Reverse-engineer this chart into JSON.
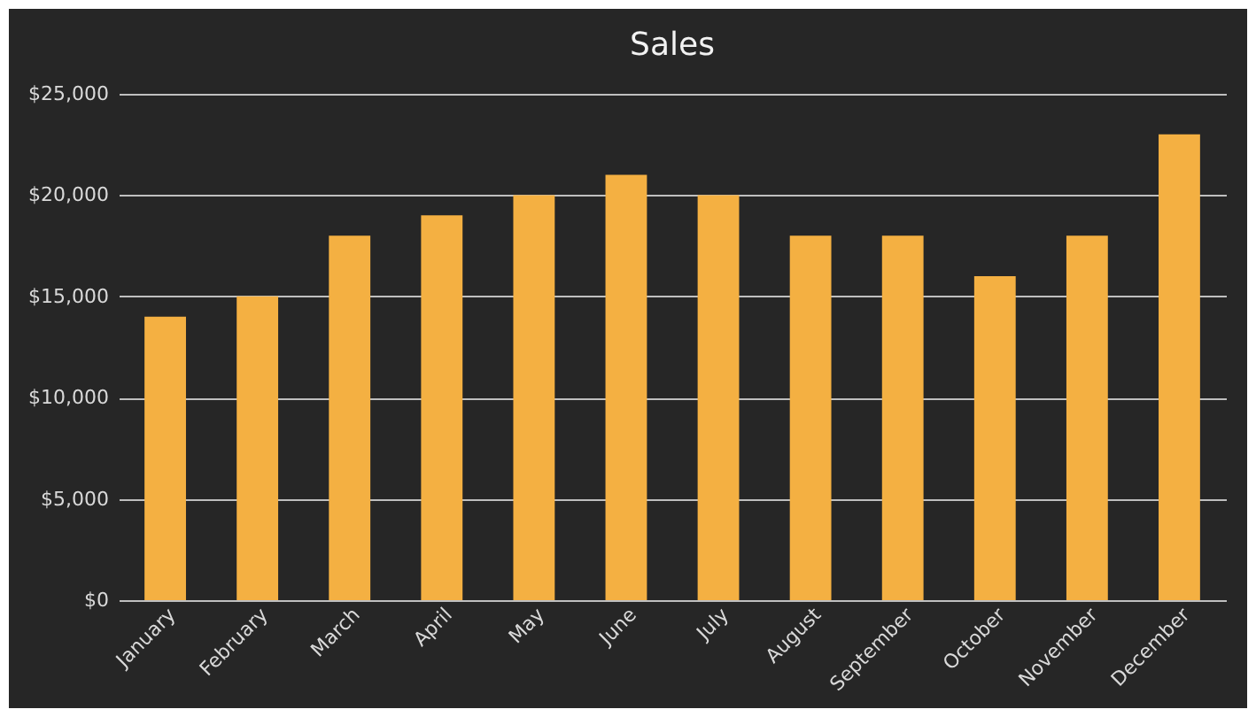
{
  "chart_data": {
    "type": "bar",
    "title": "Sales",
    "categories": [
      "January",
      "February",
      "March",
      "April",
      "May",
      "June",
      "July",
      "August",
      "September",
      "October",
      "November",
      "December"
    ],
    "values": [
      14000,
      15000,
      18000,
      19000,
      20000,
      21000,
      20000,
      18000,
      18000,
      16000,
      18000,
      23000
    ],
    "color": "#f4b042",
    "ylim": [
      0,
      25000
    ],
    "yticks": [
      {
        "value": 0,
        "label": "$0"
      },
      {
        "value": 5000,
        "label": "$5,000"
      },
      {
        "value": 10000,
        "label": "$10,000"
      },
      {
        "value": 15000,
        "label": "$15,000"
      },
      {
        "value": 20000,
        "label": "$20,000"
      },
      {
        "value": 25000,
        "label": "$25,000"
      }
    ],
    "grid": "y"
  }
}
